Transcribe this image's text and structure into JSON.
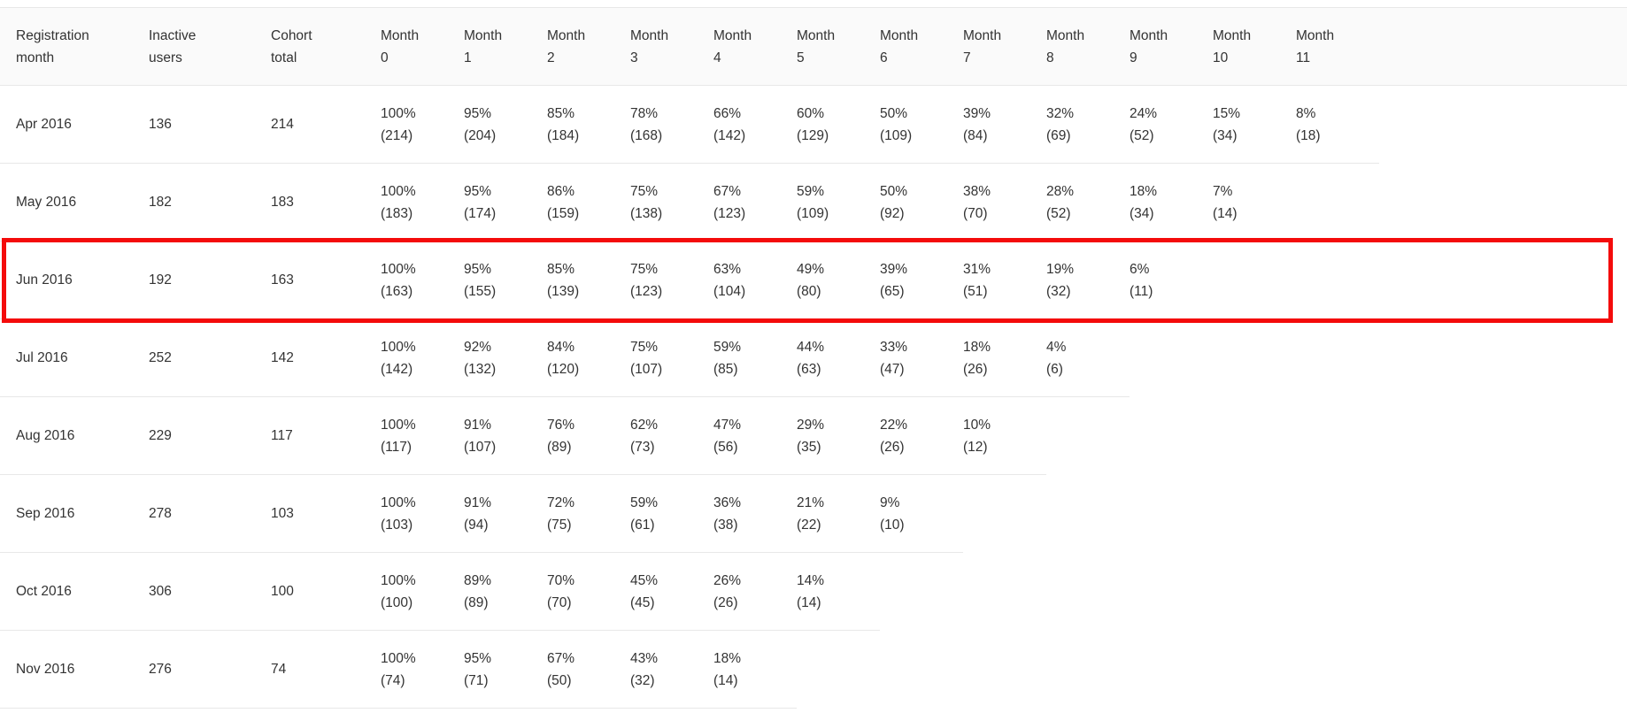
{
  "table": {
    "columns": [
      "Registration month",
      "Inactive users",
      "Cohort total",
      "Month 0",
      "Month 1",
      "Month 2",
      "Month 3",
      "Month 4",
      "Month 5",
      "Month 6",
      "Month 7",
      "Month 8",
      "Month 9",
      "Month 10",
      "Month 11"
    ],
    "highlight_color": "#f40b0b",
    "rows": [
      {
        "registration_month": "Apr 2016",
        "inactive_users": "136",
        "cohort_total": "214",
        "highlighted": false,
        "months": [
          {
            "pct": "100%",
            "count": "(214)"
          },
          {
            "pct": "95%",
            "count": "(204)"
          },
          {
            "pct": "85%",
            "count": "(184)"
          },
          {
            "pct": "78%",
            "count": "(168)"
          },
          {
            "pct": "66%",
            "count": "(142)"
          },
          {
            "pct": "60%",
            "count": "(129)"
          },
          {
            "pct": "50%",
            "count": "(109)"
          },
          {
            "pct": "39%",
            "count": "(84)"
          },
          {
            "pct": "32%",
            "count": "(69)"
          },
          {
            "pct": "24%",
            "count": "(52)"
          },
          {
            "pct": "15%",
            "count": "(34)"
          },
          {
            "pct": "8%",
            "count": "(18)"
          }
        ]
      },
      {
        "registration_month": "May 2016",
        "inactive_users": "182",
        "cohort_total": "183",
        "highlighted": false,
        "months": [
          {
            "pct": "100%",
            "count": "(183)"
          },
          {
            "pct": "95%",
            "count": "(174)"
          },
          {
            "pct": "86%",
            "count": "(159)"
          },
          {
            "pct": "75%",
            "count": "(138)"
          },
          {
            "pct": "67%",
            "count": "(123)"
          },
          {
            "pct": "59%",
            "count": "(109)"
          },
          {
            "pct": "50%",
            "count": "(92)"
          },
          {
            "pct": "38%",
            "count": "(70)"
          },
          {
            "pct": "28%",
            "count": "(52)"
          },
          {
            "pct": "18%",
            "count": "(34)"
          },
          {
            "pct": "7%",
            "count": "(14)"
          }
        ]
      },
      {
        "registration_month": "Jun 2016",
        "inactive_users": "192",
        "cohort_total": "163",
        "highlighted": true,
        "months": [
          {
            "pct": "100%",
            "count": "(163)"
          },
          {
            "pct": "95%",
            "count": "(155)"
          },
          {
            "pct": "85%",
            "count": "(139)"
          },
          {
            "pct": "75%",
            "count": "(123)"
          },
          {
            "pct": "63%",
            "count": "(104)"
          },
          {
            "pct": "49%",
            "count": "(80)"
          },
          {
            "pct": "39%",
            "count": "(65)"
          },
          {
            "pct": "31%",
            "count": "(51)"
          },
          {
            "pct": "19%",
            "count": "(32)"
          },
          {
            "pct": "6%",
            "count": "(11)"
          }
        ]
      },
      {
        "registration_month": "Jul 2016",
        "inactive_users": "252",
        "cohort_total": "142",
        "highlighted": false,
        "months": [
          {
            "pct": "100%",
            "count": "(142)"
          },
          {
            "pct": "92%",
            "count": "(132)"
          },
          {
            "pct": "84%",
            "count": "(120)"
          },
          {
            "pct": "75%",
            "count": "(107)"
          },
          {
            "pct": "59%",
            "count": "(85)"
          },
          {
            "pct": "44%",
            "count": "(63)"
          },
          {
            "pct": "33%",
            "count": "(47)"
          },
          {
            "pct": "18%",
            "count": "(26)"
          },
          {
            "pct": "4%",
            "count": "(6)"
          }
        ]
      },
      {
        "registration_month": "Aug 2016",
        "inactive_users": "229",
        "cohort_total": "117",
        "highlighted": false,
        "months": [
          {
            "pct": "100%",
            "count": "(117)"
          },
          {
            "pct": "91%",
            "count": "(107)"
          },
          {
            "pct": "76%",
            "count": "(89)"
          },
          {
            "pct": "62%",
            "count": "(73)"
          },
          {
            "pct": "47%",
            "count": "(56)"
          },
          {
            "pct": "29%",
            "count": "(35)"
          },
          {
            "pct": "22%",
            "count": "(26)"
          },
          {
            "pct": "10%",
            "count": "(12)"
          }
        ]
      },
      {
        "registration_month": "Sep 2016",
        "inactive_users": "278",
        "cohort_total": "103",
        "highlighted": false,
        "months": [
          {
            "pct": "100%",
            "count": "(103)"
          },
          {
            "pct": "91%",
            "count": "(94)"
          },
          {
            "pct": "72%",
            "count": "(75)"
          },
          {
            "pct": "59%",
            "count": "(61)"
          },
          {
            "pct": "36%",
            "count": "(38)"
          },
          {
            "pct": "21%",
            "count": "(22)"
          },
          {
            "pct": "9%",
            "count": "(10)"
          }
        ]
      },
      {
        "registration_month": "Oct 2016",
        "inactive_users": "306",
        "cohort_total": "100",
        "highlighted": false,
        "months": [
          {
            "pct": "100%",
            "count": "(100)"
          },
          {
            "pct": "89%",
            "count": "(89)"
          },
          {
            "pct": "70%",
            "count": "(70)"
          },
          {
            "pct": "45%",
            "count": "(45)"
          },
          {
            "pct": "26%",
            "count": "(26)"
          },
          {
            "pct": "14%",
            "count": "(14)"
          }
        ]
      },
      {
        "registration_month": "Nov 2016",
        "inactive_users": "276",
        "cohort_total": "74",
        "highlighted": false,
        "months": [
          {
            "pct": "100%",
            "count": "(74)"
          },
          {
            "pct": "95%",
            "count": "(71)"
          },
          {
            "pct": "67%",
            "count": "(50)"
          },
          {
            "pct": "43%",
            "count": "(32)"
          },
          {
            "pct": "18%",
            "count": "(14)"
          }
        ]
      }
    ]
  },
  "chart_data": {
    "type": "table",
    "title": "Monthly registration cohort retention table",
    "columns": [
      "Registration month",
      "Inactive users",
      "Cohort total",
      "Month 0",
      "Month 1",
      "Month 2",
      "Month 3",
      "Month 4",
      "Month 5",
      "Month 6",
      "Month 7",
      "Month 8",
      "Month 9",
      "Month 10",
      "Month 11"
    ],
    "highlighted_cohort": "Jun 2016",
    "cohorts": [
      {
        "registration_month": "Apr 2016",
        "inactive_users": 136,
        "cohort_total": 214,
        "retention_pct": [
          100,
          95,
          85,
          78,
          66,
          60,
          50,
          39,
          32,
          24,
          15,
          8
        ],
        "retention_count": [
          214,
          204,
          184,
          168,
          142,
          129,
          109,
          84,
          69,
          52,
          34,
          18
        ]
      },
      {
        "registration_month": "May 2016",
        "inactive_users": 182,
        "cohort_total": 183,
        "retention_pct": [
          100,
          95,
          86,
          75,
          67,
          59,
          50,
          38,
          28,
          18,
          7
        ],
        "retention_count": [
          183,
          174,
          159,
          138,
          123,
          109,
          92,
          70,
          52,
          34,
          14
        ]
      },
      {
        "registration_month": "Jun 2016",
        "inactive_users": 192,
        "cohort_total": 163,
        "retention_pct": [
          100,
          95,
          85,
          75,
          63,
          49,
          39,
          31,
          19,
          6
        ],
        "retention_count": [
          163,
          155,
          139,
          123,
          104,
          80,
          65,
          51,
          32,
          11
        ]
      },
      {
        "registration_month": "Jul 2016",
        "inactive_users": 252,
        "cohort_total": 142,
        "retention_pct": [
          100,
          92,
          84,
          75,
          59,
          44,
          33,
          18,
          4
        ],
        "retention_count": [
          142,
          132,
          120,
          107,
          85,
          63,
          47,
          26,
          6
        ]
      },
      {
        "registration_month": "Aug 2016",
        "inactive_users": 229,
        "cohort_total": 117,
        "retention_pct": [
          100,
          91,
          76,
          62,
          47,
          29,
          22,
          10
        ],
        "retention_count": [
          117,
          107,
          89,
          73,
          56,
          35,
          26,
          12
        ]
      },
      {
        "registration_month": "Sep 2016",
        "inactive_users": 278,
        "cohort_total": 103,
        "retention_pct": [
          100,
          91,
          72,
          59,
          36,
          21,
          9
        ],
        "retention_count": [
          103,
          94,
          75,
          61,
          38,
          22,
          10
        ]
      },
      {
        "registration_month": "Oct 2016",
        "inactive_users": 306,
        "cohort_total": 100,
        "retention_pct": [
          100,
          89,
          70,
          45,
          26,
          14
        ],
        "retention_count": [
          100,
          89,
          70,
          45,
          26,
          14
        ]
      },
      {
        "registration_month": "Nov 2016",
        "inactive_users": 276,
        "cohort_total": 74,
        "retention_pct": [
          100,
          95,
          67,
          43,
          18
        ],
        "retention_count": [
          74,
          71,
          50,
          32,
          14
        ]
      }
    ]
  }
}
